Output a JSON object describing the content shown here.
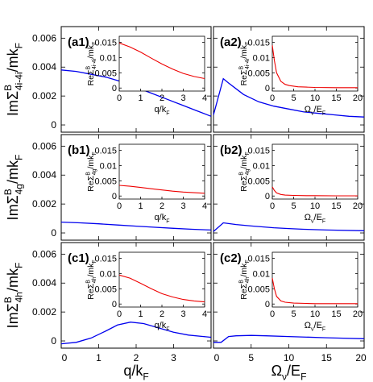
{
  "chart_data": {
    "type": "line",
    "layout": "3 rows x 2 columns, shared y per row, shared x per column, each panel has an inset at top-right",
    "columns": [
      {
        "xlabel": {
          "base": "q/k",
          "sub": "F"
        },
        "xlim": [
          0,
          4
        ],
        "xticks": [
          "0",
          "1",
          "2",
          "3"
        ]
      },
      {
        "xlabel": {
          "base": "Ω",
          "sub1": "ν",
          "mid": "/E",
          "sub2": "F"
        },
        "xlim": [
          0,
          20
        ],
        "xticks": [
          "0",
          "5",
          "10",
          "15",
          "20"
        ]
      }
    ],
    "rows": [
      {
        "ylabel": {
          "pre": "ImΣ",
          "sup": "B",
          "sub": "4i-4i",
          "post": "/mk",
          "sub2": "F"
        },
        "ylim": [
          -0.0005,
          0.0068
        ],
        "yticks": [
          "0",
          "0.002",
          "0.004",
          "0.006"
        ],
        "yticks_values": [
          0,
          0.002,
          0.004,
          0.006
        ],
        "inset_ylabel": {
          "pre": "ReΣ",
          "sup": "B",
          "sub": "4i-4i",
          "post": "/mk",
          "sub2": "F"
        }
      },
      {
        "ylabel": {
          "pre": "ImΣ",
          "sup": "B",
          "sub": "4g",
          "post": "/mk",
          "sub2": "F"
        },
        "ylim": [
          -0.0005,
          0.0068
        ],
        "yticks": [
          "0",
          "0.002",
          "0.004",
          "0.006"
        ],
        "yticks_values": [
          0,
          0.002,
          0.004,
          0.006
        ],
        "inset_ylabel": {
          "pre": "ReΣ",
          "sup": "B",
          "sub": "4g",
          "post": "/mk",
          "sub2": "F"
        }
      },
      {
        "ylabel": {
          "pre": "ImΣ",
          "sup": "B",
          "sub": "4h",
          "post": "/mk",
          "sub2": "F"
        },
        "ylim": [
          -0.0005,
          0.0068
        ],
        "yticks": [
          "0",
          "0.002",
          "0.004",
          "0.006"
        ],
        "yticks_values": [
          0,
          0.002,
          0.004,
          0.006
        ],
        "inset_ylabel": {
          "pre": "ReΣ",
          "sup": "B",
          "sub": "4h",
          "post": "/mk",
          "sub2": "F"
        }
      }
    ],
    "inset": {
      "ylim": [
        -0.001,
        0.017
      ],
      "yticks": [
        "0",
        "0.005",
        "0.01",
        "0.015"
      ],
      "yticks_values": [
        0,
        0.005,
        0.01,
        0.015
      ],
      "left_xlim": [
        0,
        4
      ],
      "left_xticks": [
        "0",
        "1",
        "2",
        "3",
        "4"
      ],
      "right_xlim": [
        0,
        20
      ],
      "right_xticks": [
        "0",
        "5",
        "10",
        "15",
        "20"
      ],
      "left_xlabel": {
        "base": "q/k",
        "sub": "F"
      },
      "right_xlabel": {
        "base": "Ω",
        "sub1": "ν",
        "mid": "/E",
        "sub2": "F"
      }
    },
    "panels": [
      {
        "id": "a1",
        "label": "(a1)",
        "row": 0,
        "col": 0,
        "series": {
          "x": [
            0,
            0.4,
            0.8,
            1.2,
            1.6,
            2.0,
            2.4,
            2.8,
            3.2,
            3.6,
            4.0
          ],
          "y": [
            0.0038,
            0.0037,
            0.0035,
            0.0033,
            0.003,
            0.0026,
            0.0022,
            0.0018,
            0.0014,
            0.001,
            0.0006
          ]
        },
        "inset_series": {
          "x": [
            0,
            0.5,
            1,
            1.5,
            2,
            2.5,
            3,
            3.5,
            4
          ],
          "y": [
            0.0148,
            0.0135,
            0.0118,
            0.0098,
            0.0079,
            0.0062,
            0.0048,
            0.0038,
            0.0031
          ]
        }
      },
      {
        "id": "a2",
        "label": "(a2)",
        "row": 0,
        "col": 1,
        "series": {
          "x": [
            0,
            1.3,
            2,
            3,
            4,
            6,
            8,
            10,
            12,
            14,
            16,
            18,
            20
          ],
          "y": [
            0.0007,
            0.0032,
            0.0029,
            0.0025,
            0.0021,
            0.0016,
            0.0013,
            0.0011,
            0.0009,
            0.0008,
            0.0007,
            0.0006,
            0.00055
          ]
        },
        "inset_series": {
          "x": [
            0,
            0.5,
            1,
            2,
            3,
            4,
            6,
            8,
            10,
            15,
            20
          ],
          "y": [
            0.014,
            0.009,
            0.005,
            0.0022,
            0.0012,
            0.0008,
            0.0004,
            0.0003,
            0.0002,
            0.0001,
            0.0001
          ]
        }
      },
      {
        "id": "b1",
        "label": "(b1)",
        "row": 1,
        "col": 0,
        "series": {
          "x": [
            0,
            0.5,
            1,
            1.5,
            2,
            2.5,
            3,
            3.5,
            4
          ],
          "y": [
            0.00075,
            0.0007,
            0.00063,
            0.00055,
            0.00047,
            0.00039,
            0.00032,
            0.00025,
            0.0002
          ]
        },
        "inset_series": {
          "x": [
            0,
            0.5,
            1,
            1.5,
            2,
            2.5,
            3,
            3.5,
            4
          ],
          "y": [
            0.0035,
            0.0032,
            0.0028,
            0.0024,
            0.002,
            0.0016,
            0.0013,
            0.0011,
            0.0009
          ]
        }
      },
      {
        "id": "b2",
        "label": "(b2)",
        "row": 1,
        "col": 1,
        "series": {
          "x": [
            0,
            1.3,
            2,
            3,
            5,
            8,
            10,
            12,
            15,
            20
          ],
          "y": [
            0.0001,
            0.0007,
            0.00065,
            0.00058,
            0.00048,
            0.00036,
            0.0003,
            0.00025,
            0.0002,
            0.00015
          ]
        },
        "inset_series": {
          "x": [
            0,
            0.5,
            1,
            2,
            3,
            5,
            8,
            10,
            15,
            20
          ],
          "y": [
            0.003,
            0.0018,
            0.001,
            0.0005,
            0.0003,
            0.0002,
            0.0001,
            0.0001,
            5e-05,
            5e-05
          ]
        }
      },
      {
        "id": "c1",
        "label": "(c1)",
        "row": 2,
        "col": 0,
        "series": {
          "x": [
            0,
            0.4,
            0.8,
            1.2,
            1.5,
            1.85,
            2.2,
            2.6,
            3.0,
            3.4,
            3.8,
            4.0
          ],
          "y": [
            -0.0002,
            -0.0001,
            0.0002,
            0.0007,
            0.0011,
            0.0013,
            0.0012,
            0.0009,
            0.0006,
            0.0004,
            0.0003,
            0.00025
          ]
        },
        "inset_series": {
          "x": [
            0,
            0.5,
            1,
            1.5,
            2,
            2.5,
            3,
            3.5,
            4
          ],
          "y": [
            0.0095,
            0.0085,
            0.0068,
            0.005,
            0.0034,
            0.0023,
            0.0015,
            0.001,
            0.0007
          ]
        }
      },
      {
        "id": "c2",
        "label": "(c2)",
        "row": 2,
        "col": 1,
        "series": {
          "x": [
            0,
            1,
            2,
            3,
            5,
            7,
            10,
            15,
            20
          ],
          "y": [
            -0.0001,
            -0.0001,
            0.0003,
            0.00035,
            0.00038,
            0.00035,
            0.0003,
            0.00022,
            0.00015
          ]
        },
        "inset_series": {
          "x": [
            0,
            0.5,
            1,
            2,
            3,
            5,
            8,
            10,
            15,
            20
          ],
          "y": [
            0.0085,
            0.005,
            0.0025,
            0.001,
            0.0006,
            0.0003,
            0.0002,
            0.0001,
            0.0001,
            0.0001
          ]
        }
      }
    ],
    "colors": {
      "main": "#0000ee",
      "inset": "#ee0000",
      "axes": "#000000"
    },
    "grid": false,
    "legend": "none"
  }
}
